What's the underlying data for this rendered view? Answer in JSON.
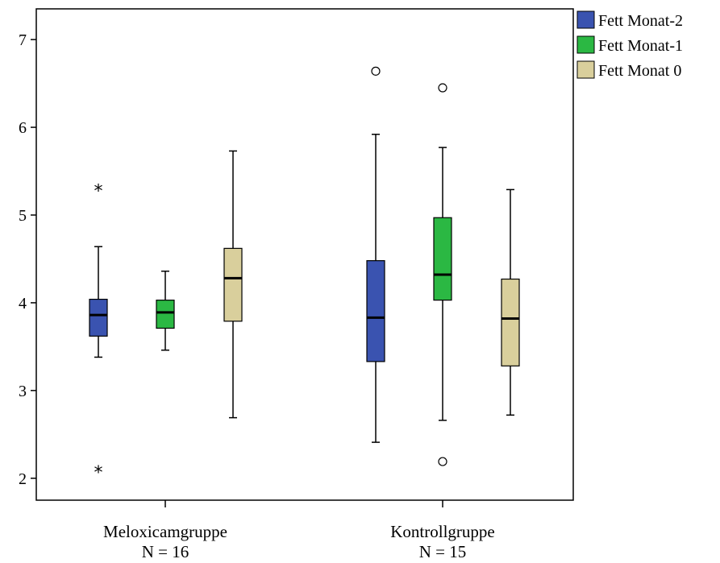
{
  "chart_data": {
    "type": "boxplot",
    "ylim": [
      1.75,
      7.35
    ],
    "yticks": [
      2,
      3,
      4,
      5,
      6,
      7
    ],
    "categories": [
      {
        "name": "Meloxicamgruppe",
        "n_label": "N = 16"
      },
      {
        "name": "Kontrollgruppe",
        "n_label": "N = 15"
      }
    ],
    "series": [
      {
        "name": "Fett Monat-2",
        "color": "#3a53b0"
      },
      {
        "name": "Fett Monat-1",
        "color": "#2bb843"
      },
      {
        "name": "Fett Monat 0",
        "color": "#d9cf9c"
      }
    ],
    "boxes": [
      {
        "category": 0,
        "series": 0,
        "whisker_low": 3.38,
        "q1": 3.62,
        "median": 3.86,
        "q3": 4.04,
        "whisker_high": 4.64,
        "outliers": [
          {
            "value": 5.29,
            "marker": "star"
          },
          {
            "value": 2.08,
            "marker": "star"
          }
        ]
      },
      {
        "category": 0,
        "series": 1,
        "whisker_low": 3.46,
        "q1": 3.71,
        "median": 3.89,
        "q3": 4.03,
        "whisker_high": 4.36,
        "outliers": []
      },
      {
        "category": 0,
        "series": 2,
        "whisker_low": 2.69,
        "q1": 3.79,
        "median": 4.28,
        "q3": 4.62,
        "whisker_high": 5.73,
        "outliers": []
      },
      {
        "category": 1,
        "series": 0,
        "whisker_low": 2.41,
        "q1": 3.33,
        "median": 3.83,
        "q3": 4.48,
        "whisker_high": 5.92,
        "outliers": [
          {
            "value": 6.64,
            "marker": "circle"
          }
        ]
      },
      {
        "category": 1,
        "series": 1,
        "whisker_low": 2.66,
        "q1": 4.03,
        "median": 4.32,
        "q3": 4.97,
        "whisker_high": 5.77,
        "outliers": [
          {
            "value": 6.45,
            "marker": "circle"
          },
          {
            "value": 2.19,
            "marker": "circle"
          }
        ]
      },
      {
        "category": 1,
        "series": 2,
        "whisker_low": 2.72,
        "q1": 3.28,
        "median": 3.82,
        "q3": 4.27,
        "whisker_high": 5.29,
        "outliers": []
      }
    ],
    "legend_position": "top-right-outside",
    "grid": false
  }
}
